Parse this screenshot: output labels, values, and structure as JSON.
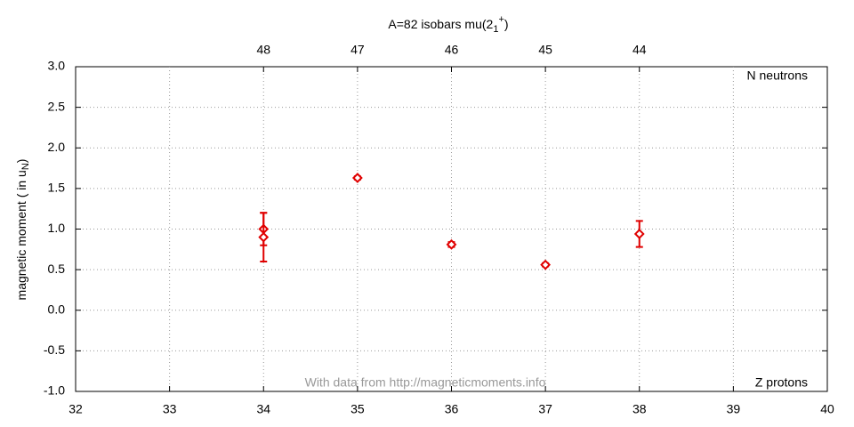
{
  "chart_data": {
    "type": "scatter",
    "title": "A=82 isobars mu(2",
    "title_sub": "1",
    "title_sup": "+",
    "title_end": ")",
    "ylabel": "magnetic moment ( in u",
    "ylabel_sub": "N",
    "ylabel_end": ")",
    "annotations": [
      "N neutrons",
      "Z protons",
      "With data from http://magneticmoments.info"
    ],
    "series": [
      {
        "name": "mu(2 1 +)",
        "color": "#e00000",
        "x": [
          34,
          34,
          35,
          36,
          37,
          38
        ],
        "values": [
          1.0,
          0.9,
          1.63,
          0.81,
          0.56,
          0.94
        ],
        "errors": [
          0.2,
          0.3,
          0.02,
          0.03,
          0.02,
          0.16
        ]
      }
    ],
    "xlim": [
      32,
      40
    ],
    "xticks": [
      32,
      33,
      34,
      35,
      36,
      37,
      38,
      39,
      40
    ],
    "x2ticks": [
      {
        "value": 34,
        "label": "48"
      },
      {
        "value": 35,
        "label": "47"
      },
      {
        "value": 36,
        "label": "46"
      },
      {
        "value": 37,
        "label": "45"
      },
      {
        "value": 38,
        "label": "44"
      }
    ],
    "ylim": [
      -1,
      3
    ],
    "yticks": [
      {
        "value": -1,
        "label": "-1.0"
      },
      -0.5,
      {
        "value": 0,
        "label": "0.0"
      },
      0.5,
      {
        "value": 1,
        "label": "1.0"
      },
      1.5,
      {
        "value": 2,
        "label": "2.0"
      },
      2.5,
      {
        "value": 3,
        "label": "3.0"
      }
    ],
    "grid": true
  }
}
